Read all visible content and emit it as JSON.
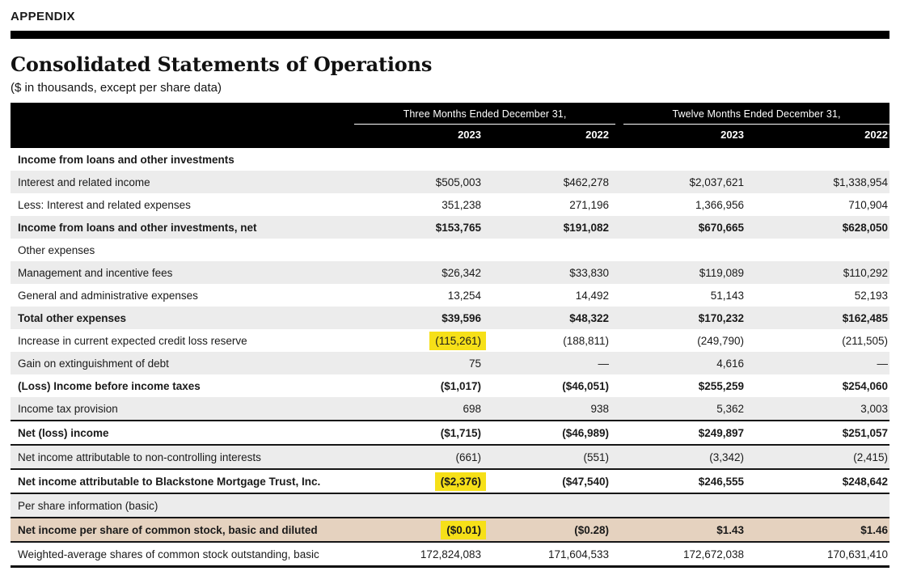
{
  "page": {
    "appendix_label": "APPENDIX",
    "title": "Consolidated Statements of Operations",
    "subtitle": "($ in thousands, except per share data)"
  },
  "colors": {
    "header_bg": "#000000",
    "row_alt_gray": "#ececec",
    "per_share_tan": "#e5d2bf",
    "highlight_yellow": "#f6e018",
    "text": "#1a1a1a"
  },
  "table": {
    "col_groups": [
      {
        "label": "Three Months Ended December 31,",
        "years": [
          "2023",
          "2022"
        ]
      },
      {
        "label": "Twelve Months Ended December 31,",
        "years": [
          "2023",
          "2022"
        ]
      }
    ],
    "rows": [
      {
        "label": "Income from loans and other investments",
        "values": [
          "",
          "",
          "",
          ""
        ],
        "bold": true,
        "bg": "white",
        "border_top": false,
        "highlight": null
      },
      {
        "label": "Interest and related income",
        "values": [
          "$505,003",
          "$462,278",
          "$2,037,621",
          "$1,338,954"
        ],
        "bold": false,
        "bg": "gray",
        "border_top": false,
        "highlight": null
      },
      {
        "label": "Less: Interest and related expenses",
        "values": [
          "351,238",
          "271,196",
          "1,366,956",
          "710,904"
        ],
        "bold": false,
        "bg": "white",
        "border_top": false,
        "highlight": null
      },
      {
        "label": "Income from loans and other investments, net",
        "values": [
          "$153,765",
          "$191,082",
          "$670,665",
          "$628,050"
        ],
        "bold": true,
        "bg": "gray",
        "border_top": false,
        "highlight": null
      },
      {
        "label": "Other expenses",
        "values": [
          "",
          "",
          "",
          ""
        ],
        "bold": false,
        "bg": "white",
        "border_top": false,
        "highlight": null
      },
      {
        "label": "Management and incentive fees",
        "values": [
          "$26,342",
          "$33,830",
          "$119,089",
          "$110,292"
        ],
        "bold": false,
        "bg": "gray",
        "border_top": false,
        "highlight": null
      },
      {
        "label": "General and administrative expenses",
        "values": [
          "13,254",
          "14,492",
          "51,143",
          "52,193"
        ],
        "bold": false,
        "bg": "white",
        "border_top": false,
        "highlight": null
      },
      {
        "label": "Total other expenses",
        "values": [
          "$39,596",
          "$48,322",
          "$170,232",
          "$162,485"
        ],
        "bold": true,
        "bg": "gray",
        "border_top": false,
        "highlight": null
      },
      {
        "label": "Increase in current expected credit loss reserve",
        "values": [
          "(115,261)",
          "(188,811)",
          "(249,790)",
          "(211,505)"
        ],
        "bold": false,
        "bg": "white",
        "border_top": false,
        "highlight": 0
      },
      {
        "label": "Gain on extinguishment of debt",
        "values": [
          "75",
          "—",
          "4,616",
          "—"
        ],
        "bold": false,
        "bg": "gray",
        "border_top": false,
        "highlight": null
      },
      {
        "label": "(Loss) Income before income taxes",
        "values": [
          "($1,017)",
          "($46,051)",
          "$255,259",
          "$254,060"
        ],
        "bold": true,
        "bg": "white",
        "border_top": false,
        "highlight": null
      },
      {
        "label": "Income tax provision",
        "values": [
          "698",
          "938",
          "5,362",
          "3,003"
        ],
        "bold": false,
        "bg": "gray",
        "border_top": false,
        "highlight": null
      },
      {
        "label": "Net (loss) income",
        "values": [
          "($1,715)",
          "($46,989)",
          "$249,897",
          "$251,057"
        ],
        "bold": true,
        "bg": "white",
        "border_top": true,
        "highlight": null
      },
      {
        "label": "Net income attributable to non-controlling interests",
        "values": [
          "(661)",
          "(551)",
          "(3,342)",
          "(2,415)"
        ],
        "bold": false,
        "bg": "gray",
        "border_top": true,
        "highlight": null
      },
      {
        "label": "Net income attributable to Blackstone Mortgage Trust, Inc.",
        "values": [
          "($2,376)",
          "($47,540)",
          "$246,555",
          "$248,642"
        ],
        "bold": true,
        "bg": "white",
        "border_top": true,
        "highlight": 0
      },
      {
        "label": "Per share information (basic)",
        "values": [
          "",
          "",
          "",
          ""
        ],
        "bold": false,
        "bg": "gray",
        "border_top": true,
        "highlight": null
      },
      {
        "label": "Net income per share of common stock, basic and diluted",
        "values": [
          "($0.01)",
          "($0.28)",
          "$1.43",
          "$1.46"
        ],
        "bold": true,
        "bg": "tan",
        "border_top": true,
        "highlight": 0
      },
      {
        "label": "Weighted-average shares of common stock outstanding, basic",
        "values": [
          "172,824,083",
          "171,604,533",
          "172,672,038",
          "170,631,410"
        ],
        "bold": false,
        "bg": "white",
        "border_top": true,
        "highlight": null
      }
    ]
  }
}
